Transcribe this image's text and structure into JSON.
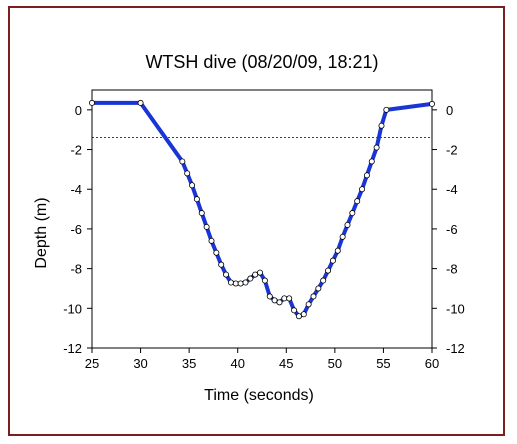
{
  "chart_data": {
    "type": "line",
    "title": "WTSH dive (08/20/09, 18:21)",
    "xlabel": "Time (seconds)",
    "ylabel": "Depth (m)",
    "xlim": [
      25,
      60
    ],
    "ylim": [
      -12,
      1
    ],
    "x_ticks": [
      25,
      30,
      35,
      40,
      45,
      50,
      55,
      60
    ],
    "y_ticks": [
      0,
      -2,
      -4,
      -6,
      -8,
      -10,
      -12
    ],
    "y_ticks_right": [
      0,
      -2,
      -4,
      -6,
      -8,
      -10,
      -12
    ],
    "reference_line": {
      "y": -1.4,
      "style": "dashed"
    },
    "grid": false,
    "legend": "none",
    "colors": {
      "line": "#1a35d6",
      "marker_fill": "#ffffff",
      "marker_edge": "#000000",
      "frame": "#7a1f1f"
    },
    "series": [
      {
        "x": [
          25.0,
          30.0,
          34.3,
          34.8,
          35.3,
          35.8,
          36.3,
          36.8,
          37.3,
          37.8,
          38.3,
          38.8,
          39.3,
          39.8,
          40.3,
          40.8,
          41.3,
          41.8,
          42.3,
          42.8,
          43.3,
          43.8,
          44.3,
          44.8,
          45.3,
          45.8,
          46.3,
          46.8,
          47.3,
          47.8,
          48.3,
          48.8,
          49.3,
          49.8,
          50.3,
          50.8,
          51.3,
          51.8,
          52.3,
          52.8,
          53.3,
          53.8,
          54.3,
          54.8,
          55.3,
          60.0
        ],
        "y": [
          0.35,
          0.35,
          -2.6,
          -3.2,
          -3.8,
          -4.5,
          -5.2,
          -5.9,
          -6.6,
          -7.2,
          -7.8,
          -8.3,
          -8.7,
          -8.75,
          -8.75,
          -8.7,
          -8.5,
          -8.3,
          -8.2,
          -8.6,
          -9.4,
          -9.6,
          -9.7,
          -9.5,
          -9.5,
          -10.1,
          -10.4,
          -10.3,
          -9.8,
          -9.4,
          -9.0,
          -8.6,
          -8.1,
          -7.6,
          -7.1,
          -6.4,
          -5.8,
          -5.2,
          -4.6,
          -4.0,
          -3.3,
          -2.6,
          -1.9,
          -0.8,
          0.0,
          0.3
        ]
      }
    ]
  }
}
